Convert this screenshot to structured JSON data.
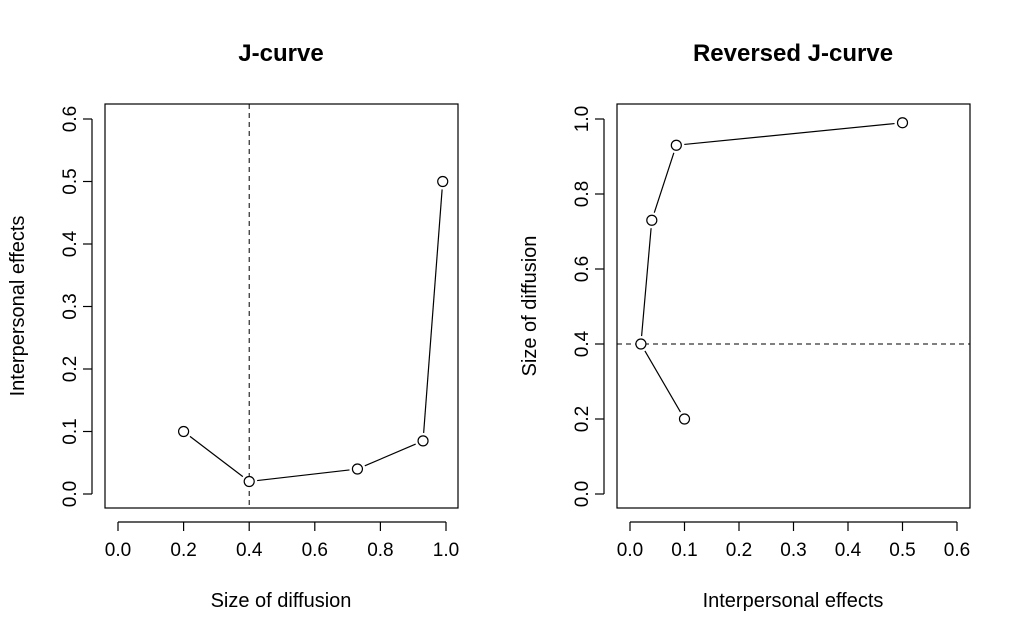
{
  "chart_data": [
    {
      "type": "line",
      "title": "J-curve",
      "xlabel": "Size of diffusion",
      "ylabel": "Interpersonal effects",
      "xlim": [
        0,
        1.0
      ],
      "ylim": [
        0,
        0.6
      ],
      "xticks": [
        "0.0",
        "0.2",
        "0.4",
        "0.6",
        "0.8",
        "1.0"
      ],
      "yticks": [
        "0.0",
        "0.1",
        "0.2",
        "0.3",
        "0.4",
        "0.5",
        "0.6"
      ],
      "x": [
        0.2,
        0.4,
        0.73,
        0.93,
        0.99
      ],
      "y": [
        0.1,
        0.02,
        0.04,
        0.085,
        0.5
      ],
      "reference_line": {
        "orientation": "vertical",
        "value": 0.4,
        "style": "dashed"
      },
      "marker": "open-circle",
      "grid": false
    },
    {
      "type": "line",
      "title": "Reversed J-curve",
      "xlabel": "Interpersonal effects",
      "ylabel": "Size of diffusion",
      "xlim": [
        0,
        0.6
      ],
      "ylim": [
        0,
        1.0
      ],
      "xticks": [
        "0.0",
        "0.1",
        "0.2",
        "0.3",
        "0.4",
        "0.5",
        "0.6"
      ],
      "yticks": [
        "0.0",
        "0.2",
        "0.4",
        "0.6",
        "0.8",
        "1.0"
      ],
      "x": [
        0.1,
        0.02,
        0.04,
        0.085,
        0.5
      ],
      "y": [
        0.2,
        0.4,
        0.73,
        0.93,
        0.99
      ],
      "reference_line": {
        "orientation": "horizontal",
        "value": 0.4,
        "style": "dashed"
      },
      "marker": "open-circle",
      "grid": false
    }
  ]
}
